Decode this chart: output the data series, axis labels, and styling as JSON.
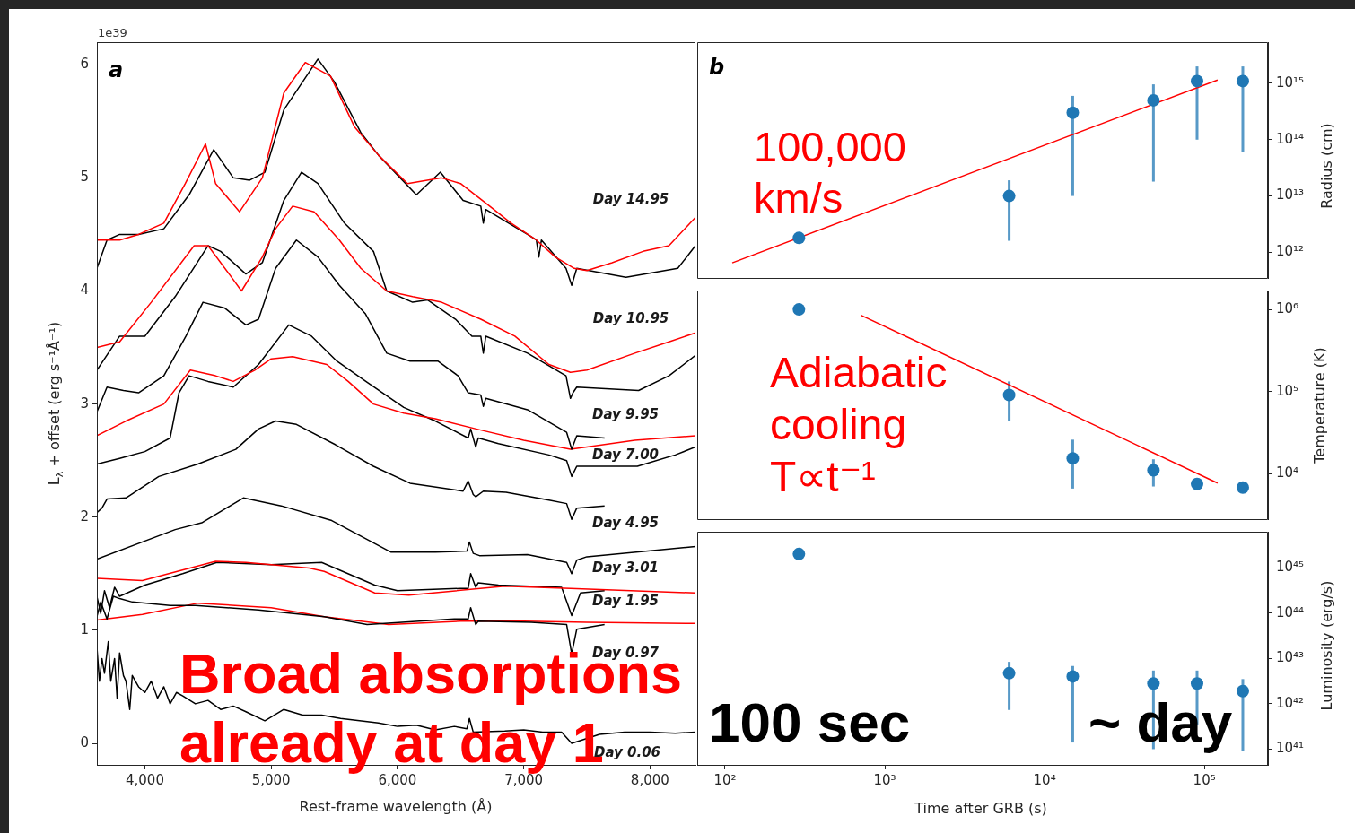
{
  "chart_data": [
    {
      "type": "line",
      "xlabel": "Rest-frame wavelength (Å)",
      "ylabel": "L$_{λ}$ + offset (erg s⁻¹Å⁻¹)",
      "xlim": [
        3620,
        8360
      ],
      "ylim": [
        -0.19,
        6.2
      ],
      "xticks": [
        {
          "value": 4000,
          "label": "4,000"
        },
        {
          "value": 5000,
          "label": "5,000"
        },
        {
          "value": 6000,
          "label": "6,000"
        },
        {
          "value": 7000,
          "label": "7,000"
        },
        {
          "value": 8000,
          "label": "8,000"
        }
      ],
      "yticks": [
        0,
        1,
        2,
        3,
        4,
        5,
        6
      ],
      "series": [
        {
          "color": "#ff0000",
          "x": [
            3620,
            3800,
            3950,
            4150,
            4320,
            4480,
            4560,
            4750,
            4930,
            5100,
            5270,
            5470,
            5660,
            5850,
            6080,
            6350,
            6500,
            6730,
            6900,
            7100,
            7250,
            7400,
            7500,
            7700,
            7945,
            8150,
            8360
          ],
          "values": [
            4.45,
            4.45,
            4.5,
            4.6,
            4.95,
            5.3,
            4.95,
            4.7,
            5.0,
            5.75,
            6.02,
            5.9,
            5.45,
            5.2,
            4.95,
            5.0,
            4.95,
            4.75,
            4.6,
            4.45,
            4.3,
            4.2,
            4.18,
            4.25,
            4.35,
            4.4,
            4.65
          ]
        },
        {
          "color": "#000000",
          "x": [
            3620,
            3700,
            3800,
            3950,
            4150,
            4350,
            4545,
            4700,
            4830,
            4950,
            5100,
            5370,
            5500,
            5710,
            5850,
            6150,
            6340,
            6520,
            6660,
            6680,
            6700,
            7030,
            7100,
            7120,
            7140,
            7335,
            7380,
            7420,
            7810,
            8220,
            8360
          ],
          "values": [
            4.2,
            4.45,
            4.5,
            4.5,
            4.55,
            4.85,
            5.25,
            5.0,
            4.98,
            5.05,
            5.6,
            6.05,
            5.85,
            5.4,
            5.2,
            4.85,
            5.05,
            4.8,
            4.75,
            4.6,
            4.72,
            4.5,
            4.45,
            4.3,
            4.45,
            4.2,
            4.05,
            4.2,
            4.12,
            4.2,
            4.4
          ]
        },
        {
          "color": "#ff0000",
          "x": [
            3620,
            3800,
            4050,
            4390,
            4500,
            4700,
            4765,
            4930,
            5035,
            5170,
            5340,
            5540,
            5710,
            5915,
            6120,
            6350,
            6660,
            6930,
            7200,
            7370,
            7500,
            7880,
            8150,
            8360
          ],
          "values": [
            3.5,
            3.55,
            3.9,
            4.4,
            4.4,
            4.1,
            4.0,
            4.3,
            4.55,
            4.75,
            4.7,
            4.45,
            4.2,
            4.0,
            3.95,
            3.9,
            3.75,
            3.6,
            3.35,
            3.28,
            3.3,
            3.45,
            3.55,
            3.63
          ]
        },
        {
          "color": "#000000",
          "x": [
            3620,
            3800,
            4000,
            4240,
            4500,
            4600,
            4800,
            4930,
            5100,
            5240,
            5370,
            5580,
            5810,
            5915,
            6120,
            6240,
            6460,
            6590,
            6660,
            6680,
            6700,
            7030,
            7335,
            7370,
            7390,
            7420,
            7910,
            8150,
            8360
          ],
          "values": [
            3.3,
            3.6,
            3.6,
            3.95,
            4.4,
            4.35,
            4.15,
            4.25,
            4.8,
            5.05,
            4.95,
            4.6,
            4.35,
            4.0,
            3.9,
            3.92,
            3.75,
            3.6,
            3.6,
            3.45,
            3.6,
            3.45,
            3.25,
            3.05,
            3.1,
            3.15,
            3.12,
            3.25,
            3.43
          ]
        },
        {
          "color": "#000000",
          "x": [
            3620,
            3700,
            3830,
            3950,
            4150,
            4325,
            4460,
            4630,
            4800,
            4900,
            5035,
            5200,
            5370,
            5540,
            5745,
            5915,
            6100,
            6320,
            6480,
            6560,
            6660,
            6680,
            6700,
            7030,
            7340,
            7380,
            7420,
            7640
          ],
          "values": [
            2.93,
            3.15,
            3.12,
            3.1,
            3.25,
            3.6,
            3.9,
            3.85,
            3.7,
            3.75,
            4.2,
            4.45,
            4.3,
            4.05,
            3.8,
            3.45,
            3.38,
            3.38,
            3.25,
            3.1,
            3.08,
            2.98,
            3.05,
            2.95,
            2.75,
            2.6,
            2.72,
            2.7
          ]
        },
        {
          "color": "#ff0000",
          "x": [
            3620,
            3850,
            4150,
            4360,
            4560,
            4700,
            4870,
            5000,
            5170,
            5440,
            5610,
            5810,
            6050,
            6300,
            6660,
            7000,
            7370,
            7500,
            7880,
            8360
          ],
          "values": [
            2.72,
            2.85,
            3.0,
            3.3,
            3.25,
            3.2,
            3.3,
            3.4,
            3.42,
            3.35,
            3.2,
            3.0,
            2.92,
            2.87,
            2.77,
            2.68,
            2.6,
            2.62,
            2.68,
            2.72
          ]
        },
        {
          "color": "#000000",
          "x": [
            3620,
            3800,
            4000,
            4200,
            4270,
            4350,
            4500,
            4700,
            4900,
            5140,
            5320,
            5520,
            5750,
            6050,
            6300,
            6560,
            6580,
            6620,
            6640,
            6800,
            7200,
            7340,
            7380,
            7420,
            7500,
            7900,
            8200,
            8360
          ],
          "values": [
            2.47,
            2.52,
            2.58,
            2.7,
            3.1,
            3.25,
            3.2,
            3.15,
            3.35,
            3.7,
            3.6,
            3.38,
            3.2,
            2.97,
            2.85,
            2.7,
            2.78,
            2.62,
            2.7,
            2.65,
            2.55,
            2.5,
            2.36,
            2.45,
            2.45,
            2.45,
            2.55,
            2.62
          ]
        },
        {
          "color": "#000000",
          "x": [
            3620,
            3660,
            3700,
            3850,
            4110,
            4420,
            4720,
            4900,
            5035,
            5200,
            5510,
            5810,
            6100,
            6520,
            6560,
            6600,
            6620,
            6680,
            6860,
            7200,
            7340,
            7380,
            7420,
            7640
          ],
          "values": [
            2.04,
            2.08,
            2.16,
            2.17,
            2.36,
            2.47,
            2.6,
            2.78,
            2.85,
            2.82,
            2.64,
            2.45,
            2.3,
            2.23,
            2.32,
            2.2,
            2.18,
            2.23,
            2.22,
            2.15,
            2.12,
            1.98,
            2.08,
            2.1
          ]
        },
        {
          "color": "#000000",
          "x": [
            3620,
            4240,
            4450,
            4780,
            5080,
            5480,
            5950,
            6300,
            6550,
            6570,
            6600,
            6650,
            7030,
            7340,
            7380,
            7420,
            7500,
            8360
          ],
          "values": [
            1.63,
            1.89,
            1.95,
            2.17,
            2.1,
            1.97,
            1.69,
            1.69,
            1.7,
            1.78,
            1.68,
            1.66,
            1.67,
            1.6,
            1.5,
            1.62,
            1.65,
            1.74
          ]
        },
        {
          "color": "#ff0000",
          "x": [
            3620,
            3980,
            4560,
            4800,
            5300,
            5420,
            5820,
            6090,
            6850,
            7370,
            8360
          ],
          "values": [
            1.46,
            1.44,
            1.61,
            1.6,
            1.55,
            1.52,
            1.33,
            1.31,
            1.39,
            1.37,
            1.33
          ]
        },
        {
          "color": "#000000",
          "x": [
            3620,
            3650,
            3680,
            3720,
            3760,
            3800,
            4000,
            4300,
            4570,
            5000,
            5400,
            5820,
            6000,
            6500,
            6560,
            6580,
            6620,
            6640,
            6800,
            7300,
            7380,
            7450,
            7640
          ],
          "values": [
            1.3,
            1.15,
            1.35,
            1.2,
            1.38,
            1.3,
            1.4,
            1.5,
            1.6,
            1.58,
            1.6,
            1.4,
            1.35,
            1.37,
            1.37,
            1.5,
            1.38,
            1.42,
            1.4,
            1.38,
            1.13,
            1.33,
            1.35
          ]
        },
        {
          "color": "#000000",
          "x": [
            3620,
            3650,
            3700,
            3750,
            3800,
            3900,
            4200,
            4400,
            4900,
            5420,
            5760,
            6450,
            6560,
            6580,
            6620,
            6640,
            7060,
            7340,
            7380,
            7420,
            7640
          ],
          "values": [
            1.12,
            1.25,
            1.1,
            1.3,
            1.28,
            1.25,
            1.22,
            1.22,
            1.18,
            1.12,
            1.05,
            1.1,
            1.1,
            1.2,
            1.05,
            1.08,
            1.07,
            1.05,
            0.79,
            1.01,
            1.05
          ]
        },
        {
          "color": "#ff0000",
          "x": [
            3620,
            3980,
            4420,
            5000,
            5420,
            5930,
            6500,
            7000,
            7500,
            8360
          ],
          "values": [
            1.09,
            1.14,
            1.24,
            1.2,
            1.12,
            1.05,
            1.08,
            1.08,
            1.07,
            1.06
          ]
        },
        {
          "color": "#000000",
          "x": [
            3620,
            3640,
            3660,
            3680,
            3710,
            3730,
            3760,
            3780,
            3800,
            3830,
            3850,
            3880,
            3900,
            3950,
            4000,
            4050,
            4100,
            4150,
            4200,
            4250,
            4300,
            4400,
            4500,
            4600,
            4700,
            4800,
            4950,
            5100,
            5250,
            5400,
            5550,
            5700,
            5850,
            6000,
            6150,
            6300,
            6450,
            6550,
            6570,
            6600,
            6850,
            7000,
            7150,
            7300,
            7380,
            7600,
            7800,
            8000,
            8200,
            8360
          ],
          "values": [
            0.85,
            0.55,
            0.75,
            0.62,
            0.9,
            0.55,
            0.75,
            0.4,
            0.8,
            0.6,
            0.55,
            0.3,
            0.6,
            0.5,
            0.45,
            0.55,
            0.4,
            0.5,
            0.35,
            0.45,
            0.42,
            0.35,
            0.38,
            0.3,
            0.33,
            0.28,
            0.2,
            0.3,
            0.25,
            0.25,
            0.22,
            0.2,
            0.18,
            0.15,
            0.16,
            0.12,
            0.15,
            0.13,
            0.22,
            0.1,
            0.11,
            0.12,
            0.1,
            0.1,
            0.0,
            0.08,
            0.1,
            0.1,
            0.09,
            0.1
          ]
        }
      ],
      "annotations": [
        "a",
        "1e39",
        "Broad absorptions already at day 1",
        "Day 14.95",
        "Day 10.95",
        "Day 9.95",
        "Day 7.00",
        "Day 4.95",
        "Day 3.01",
        "Day 1.95",
        "Day 0.97",
        "Day 0.06"
      ]
    },
    {
      "type": "scatter",
      "marker": "circle",
      "log": "xy",
      "tick_labels": "y",
      "ylabel": "Radius (cm)",
      "xlim": [
        67,
        250000
      ],
      "ylim": [
        350000000000.0,
        5400000000000000.0
      ],
      "yticks": [
        {
          "value": 1000000000000.0,
          "label": "10¹²"
        },
        {
          "value": 10000000000000.0,
          "label": "10¹³"
        },
        {
          "value": 100000000000000.0,
          "label": "10¹⁴"
        },
        {
          "value": 1000000000000000.0,
          "label": "10¹⁵"
        }
      ],
      "series": [
        {
          "color": "#1f77b4",
          "x": [
            290,
            6000,
            15000,
            48000,
            90000,
            174000
          ],
          "values": [
            1800000000000.0,
            10000000000000.0,
            300000000000000.0,
            500000000000000.0,
            1100000000000000.0,
            1100000000000000.0
          ],
          "errors": [
            null,
            [
              1600000000000.0,
              19000000000000.0
            ],
            [
              10000000000000.0,
              600000000000000.0
            ],
            [
              18000000000000.0,
              960000000000000.0
            ],
            [
              100000000000000.0,
              2000000000000000.0
            ],
            [
              60000000000000.0,
              2000000000000000.0
            ]
          ]
        },
        {
          "type": "line",
          "marker": "none",
          "color": "#ff0000",
          "x": [
            111,
            121000
          ],
          "values": [
            650000000000.0,
            1150000000000000.0
          ]
        }
      ],
      "annotations": [
        "b",
        "100,000 km/s"
      ]
    },
    {
      "type": "scatter",
      "marker": "circle",
      "log": "xy",
      "tick_labels": "y",
      "ylabel": "Temperature (K)",
      "xlim": [
        67,
        250000
      ],
      "ylim": [
        2800,
        1700000.0
      ],
      "yticks": [
        {
          "value": 10000.0,
          "label": "10⁴"
        },
        {
          "value": 100000.0,
          "label": "10⁵"
        },
        {
          "value": 1000000.0,
          "label": "10⁶"
        }
      ],
      "series": [
        {
          "color": "#1f77b4",
          "x": [
            290,
            6000,
            15000,
            48000,
            90000,
            174000
          ],
          "values": [
            1000000.0,
            91000.0,
            15400.0,
            11000.0,
            7500.0,
            6800.0
          ],
          "errors": [
            null,
            [
              44000.0,
              133000.0
            ],
            [
              6600.0,
              26000.0
            ],
            [
              7000.0,
              15000.0
            ],
            null,
            null
          ]
        },
        {
          "type": "line",
          "marker": "none",
          "color": "#ff0000",
          "x": [
            710,
            121000
          ],
          "values": [
            850000.0,
            7700.0
          ]
        }
      ],
      "annotations": [
        "Adiabatic cooling T∝t⁻¹"
      ]
    },
    {
      "type": "scatter",
      "marker": "circle",
      "log": "xy",
      "xlabel": "Time after GRB (s)",
      "ylabel": "Luminosity (erg/s)",
      "xlim": [
        67,
        250000
      ],
      "ylim": [
        4.5e+40,
        6.2e+45
      ],
      "xticks": [
        {
          "value": 100,
          "label": "10²"
        },
        {
          "value": 1000,
          "label": "10³"
        },
        {
          "value": 10000,
          "label": "10⁴"
        },
        {
          "value": 100000,
          "label": "10⁵"
        }
      ],
      "yticks": [
        {
          "value": 1e+41,
          "label": "10⁴¹"
        },
        {
          "value": 1e+42,
          "label": "10⁴²"
        },
        {
          "value": 1e+43,
          "label": "10⁴³"
        },
        {
          "value": 1e+44,
          "label": "10⁴⁴"
        },
        {
          "value": 1e+45,
          "label": "10⁴⁵"
        }
      ],
      "series": [
        {
          "color": "#1f77b4",
          "x": [
            290,
            6000,
            15000,
            48000,
            90000,
            174000
          ],
          "values": [
            2e+45,
            4.7e+42,
            4e+42,
            2.8e+42,
            2.8e+42,
            1.9e+42
          ],
          "errors": [
            null,
            [
              7.3e+41,
              8.4e+42
            ],
            [
              1.4e+41,
              6.8e+42
            ],
            [
              1e+41,
              5.4e+42
            ],
            [
              3.5e+41,
              5.4e+42
            ],
            [
              9e+40,
              3.5e+42
            ]
          ]
        }
      ],
      "annotations": [
        "100 sec",
        "~ day"
      ]
    }
  ]
}
